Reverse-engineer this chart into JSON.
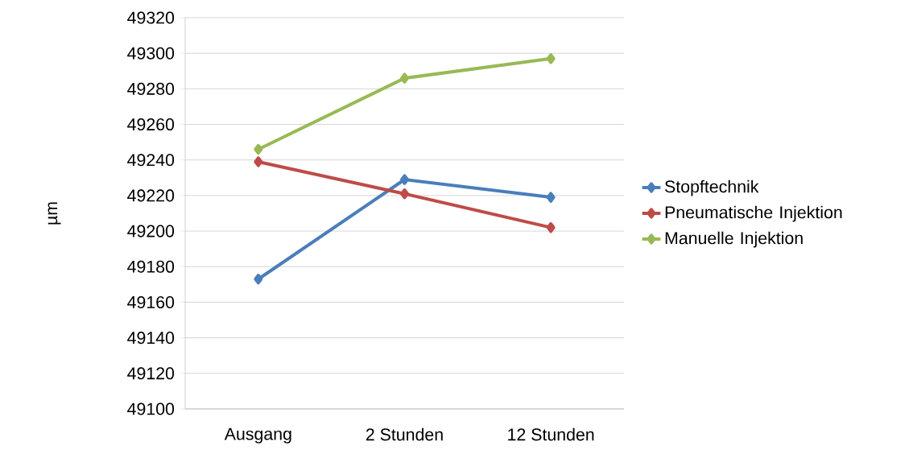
{
  "chart_data": {
    "type": "line",
    "ylabel": "µm",
    "categories": [
      "Ausgang",
      "2 Stunden",
      "12 Stunden"
    ],
    "series": [
      {
        "name": "Stopftechnik",
        "color": "#4a7ebb",
        "values": [
          49173,
          49229,
          49219
        ]
      },
      {
        "name": "Pneumatische Injektion",
        "color": "#be4b48",
        "values": [
          49239,
          49221,
          49202
        ]
      },
      {
        "name": "Manuelle Injektion",
        "color": "#98b954",
        "values": [
          49246,
          49286,
          49297
        ]
      }
    ],
    "ylim": [
      49100,
      49320
    ],
    "yticks": [
      49100,
      49120,
      49140,
      49160,
      49180,
      49200,
      49220,
      49240,
      49260,
      49280,
      49300,
      49320
    ],
    "grid": "y",
    "legend": "right",
    "marker": "diamond",
    "line_style": "solid"
  }
}
